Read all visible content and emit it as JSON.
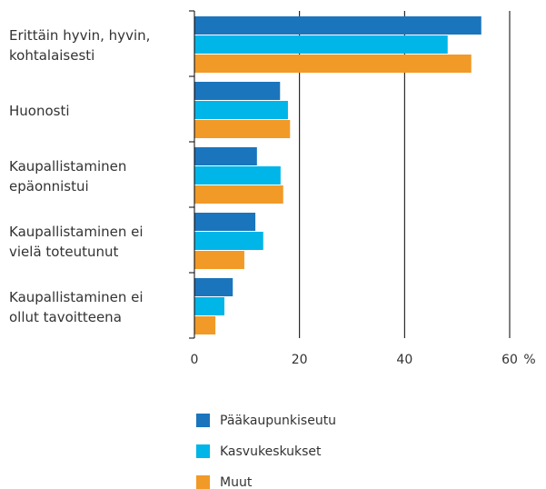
{
  "chart_data": {
    "type": "bar",
    "orientation": "horizontal",
    "categories": [
      "Erittäin hyvin, hyvin,\nkohtalaisesti",
      "Huonosti",
      "Kaupallistaminen\nepäonnistui",
      "Kaupallistaminen ei\nvielä toteutunut",
      "Kaupallistaminen ei\nollut tavoitteena"
    ],
    "series": [
      {
        "name": "Pääkaupunkiseutu",
        "color": "#1b75bc",
        "values": [
          54.6,
          16.3,
          11.9,
          11.6,
          7.3
        ]
      },
      {
        "name": "Kasvukeskukset",
        "color": "#00b5e8",
        "values": [
          48.2,
          17.8,
          16.4,
          13.1,
          5.7
        ]
      },
      {
        "name": "Muut",
        "color": "#f19a27",
        "values": [
          52.7,
          18.2,
          16.9,
          9.5,
          4.0
        ]
      }
    ],
    "x_label": "%",
    "xlim": [
      0,
      60
    ],
    "xticks": [
      0,
      20,
      40,
      60
    ],
    "grid": true
  }
}
